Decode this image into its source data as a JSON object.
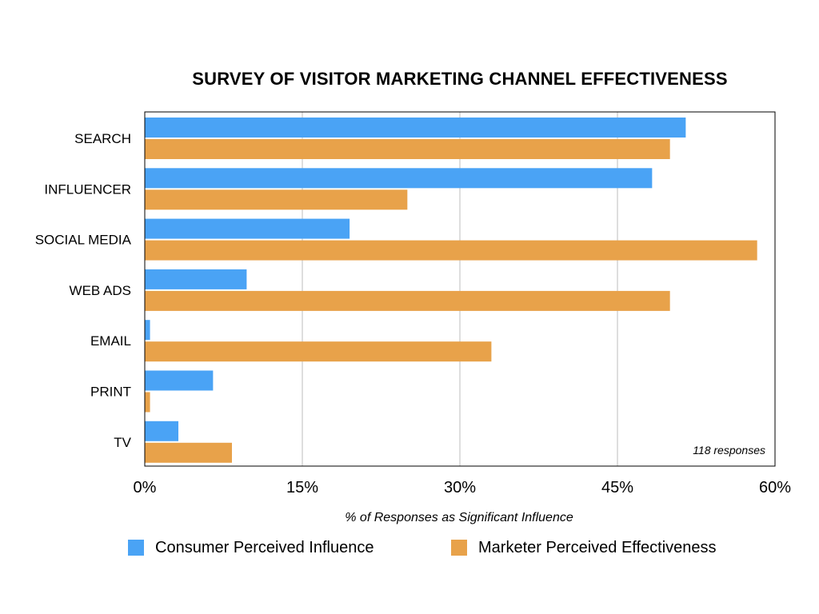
{
  "chart_data": {
    "type": "bar",
    "orientation": "horizontal",
    "title": "SURVEY OF VISITOR MARKETING CHANNEL EFFECTIVENESS",
    "xlabel": "% of Responses as Significant Influence",
    "ylabel": "",
    "xlim": [
      0,
      60
    ],
    "xticks": [
      "0%",
      "15%",
      "30%",
      "45%",
      "60%"
    ],
    "xtick_values": [
      0,
      15,
      30,
      45,
      60
    ],
    "grid": true,
    "annotation": "118 responses",
    "legend_position": "bottom",
    "categories": [
      "SEARCH",
      "INFLUENCER",
      "SOCIAL MEDIA",
      "WEB ADS",
      "EMAIL",
      "PRINT",
      "TV"
    ],
    "series": [
      {
        "name": "Consumer Perceived Influence",
        "color": "#4AA3F5",
        "values": [
          51.5,
          48.3,
          19.5,
          9.7,
          0.5,
          6.5,
          3.2
        ]
      },
      {
        "name": "Marketer Perceived Effectiveness",
        "color": "#E8A24A",
        "values": [
          50.0,
          25.0,
          58.3,
          50.0,
          33.0,
          0.5,
          8.3
        ]
      }
    ]
  }
}
